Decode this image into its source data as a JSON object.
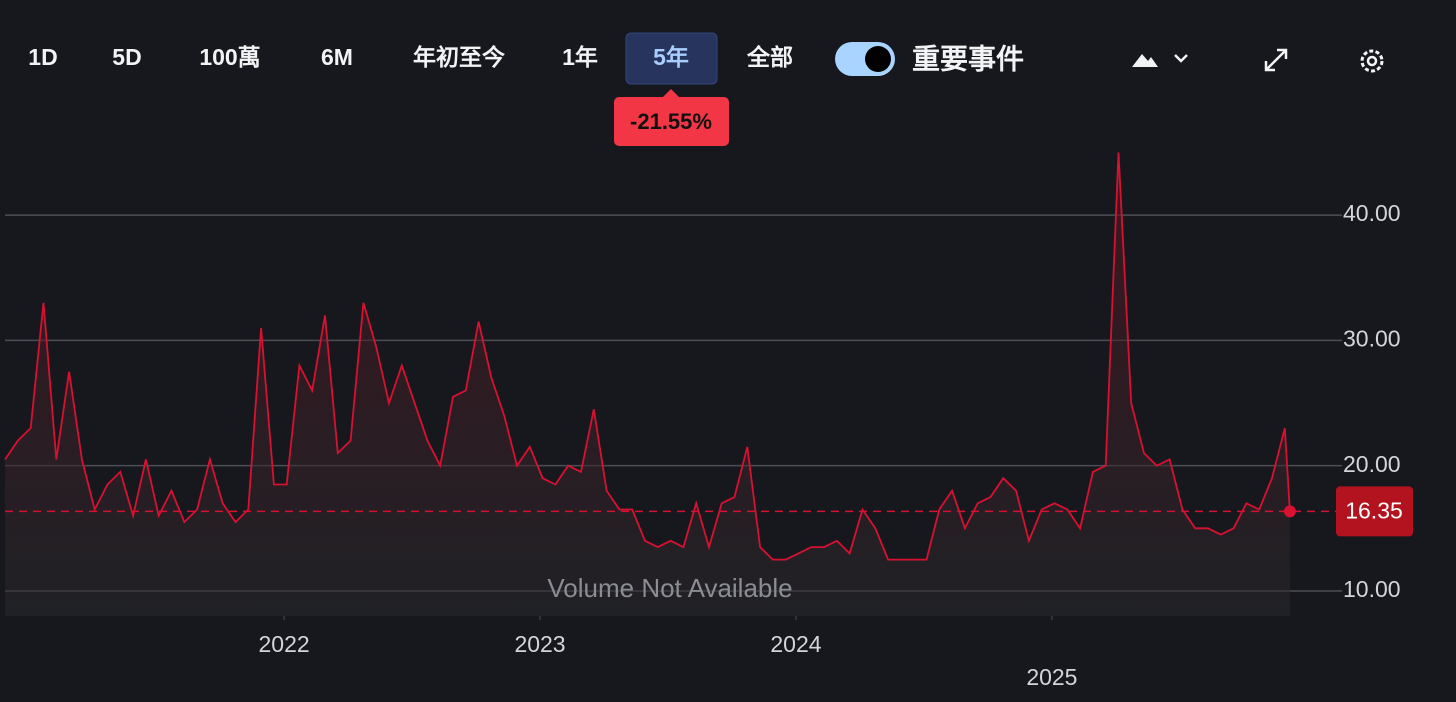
{
  "toolbar": {
    "ranges": [
      "1D",
      "5D",
      "100萬",
      "6M",
      "年初至今",
      "1年",
      "5年",
      "全部"
    ],
    "selected_index": 6,
    "events_label": "重要事件",
    "events_on": true,
    "change_badge": "-21.55%"
  },
  "chart_data": {
    "type": "line",
    "annotation": "Volume Not Available",
    "x": [
      2020.91,
      2020.96,
      2021.01,
      2021.06,
      2021.11,
      2021.16,
      2021.21,
      2021.26,
      2021.31,
      2021.36,
      2021.41,
      2021.46,
      2021.51,
      2021.56,
      2021.61,
      2021.66,
      2021.71,
      2021.76,
      2021.81,
      2021.86,
      2021.91,
      2021.96,
      2022.01,
      2022.06,
      2022.11,
      2022.16,
      2022.21,
      2022.26,
      2022.31,
      2022.36,
      2022.41,
      2022.46,
      2022.51,
      2022.56,
      2022.61,
      2022.66,
      2022.71,
      2022.76,
      2022.81,
      2022.86,
      2022.91,
      2022.96,
      2023.01,
      2023.06,
      2023.11,
      2023.16,
      2023.21,
      2023.26,
      2023.31,
      2023.36,
      2023.41,
      2023.46,
      2023.51,
      2023.56,
      2023.61,
      2023.66,
      2023.71,
      2023.76,
      2023.81,
      2023.86,
      2023.91,
      2023.96,
      2024.01,
      2024.06,
      2024.11,
      2024.16,
      2024.21,
      2024.26,
      2024.31,
      2024.36,
      2024.41,
      2024.46,
      2024.51,
      2024.56,
      2024.61,
      2024.66,
      2024.71,
      2024.76,
      2024.81,
      2024.86,
      2024.91,
      2024.96,
      2025.01,
      2025.06,
      2025.11,
      2025.16,
      2025.21,
      2025.26,
      2025.31,
      2025.36,
      2025.41,
      2025.46,
      2025.51,
      2025.56,
      2025.61,
      2025.66,
      2025.71,
      2025.76,
      2025.81,
      2025.86,
      2025.91,
      2025.93
    ],
    "series": [
      {
        "color": "#d81131",
        "values": [
          20.5,
          22,
          23,
          33,
          20.5,
          27.5,
          20.5,
          16.5,
          18.5,
          19.5,
          16,
          20.5,
          16,
          18,
          15.5,
          16.5,
          20.5,
          17,
          15.5,
          16.5,
          31,
          18.5,
          18.5,
          28,
          26,
          32,
          21,
          22,
          33,
          29.5,
          25,
          28,
          25,
          22,
          20,
          25.5,
          26,
          31.5,
          27,
          24,
          20,
          21.5,
          19,
          18.5,
          20,
          19.5,
          24.5,
          18,
          16.5,
          16.5,
          14,
          13.5,
          14,
          13.5,
          17,
          13.5,
          17,
          17.5,
          21.5,
          13.5,
          12.5,
          12.5,
          13,
          13.5,
          13.5,
          14,
          13,
          16.5,
          15,
          12.5,
          12.5,
          12.5,
          12.5,
          16.5,
          18,
          15,
          17,
          17.5,
          19,
          18,
          14,
          16.5,
          17,
          16.5,
          15,
          19.5,
          20,
          45,
          25,
          21,
          20,
          20.5,
          16.5,
          15,
          15,
          14.5,
          15,
          17,
          16.5,
          19,
          23,
          16.35
        ]
      }
    ],
    "xlim": [
      2020.89,
      2026.11
    ],
    "ylim": [
      8,
      46
    ],
    "xticks": [
      2022,
      2023,
      2024,
      2025
    ],
    "yticks": [
      {
        "value": 10,
        "label": "10.00"
      },
      {
        "value": 20,
        "label": "20.00"
      },
      {
        "value": 30,
        "label": "30.00"
      },
      {
        "value": 40,
        "label": "40.00"
      }
    ],
    "grid": true
  }
}
